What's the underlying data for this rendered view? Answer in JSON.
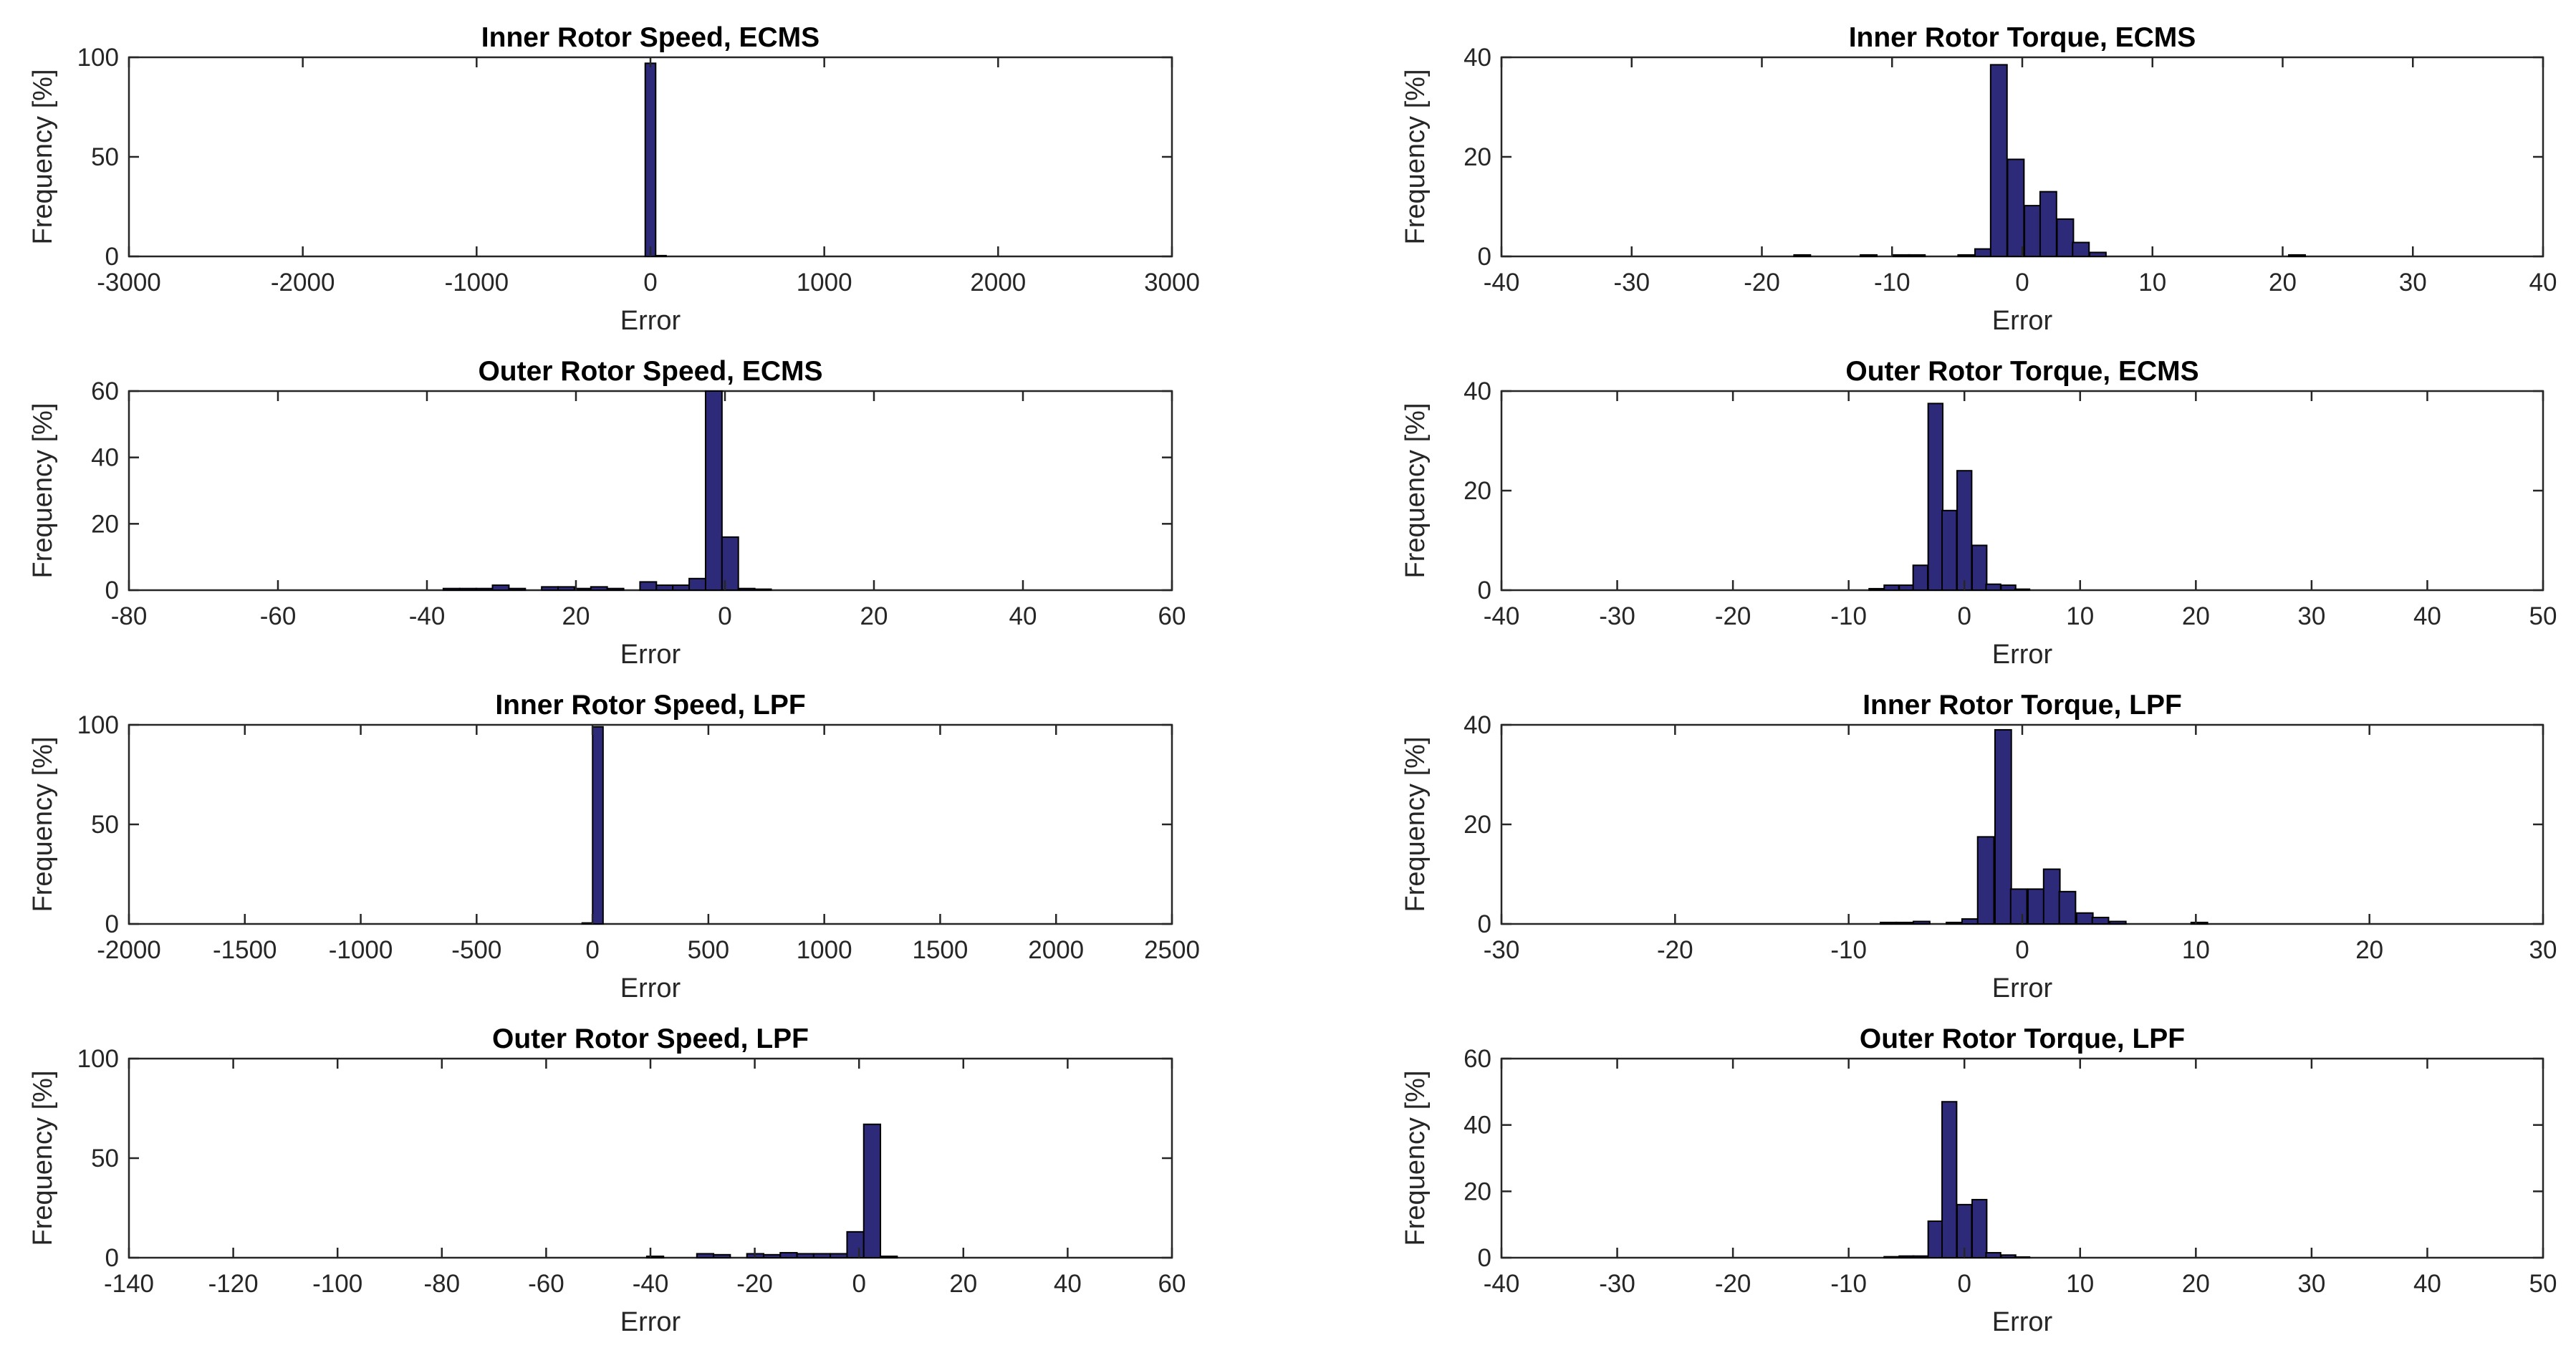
{
  "figure": {
    "background": "#ffffff",
    "bar_color": "#2e2a7a"
  },
  "chart_data": [
    {
      "type": "bar",
      "title": "Inner Rotor Speed, ECMS",
      "xlabel": "Error",
      "ylabel": "Frequency [%]",
      "xlim": [
        -3000,
        3000
      ],
      "ylim": [
        0,
        100
      ],
      "xticks": [
        "-3000",
        "-2000",
        "-1000",
        "0",
        "1000",
        "2000",
        "3000"
      ],
      "yticks": [
        "0",
        "50",
        "100"
      ],
      "bin_width": 60,
      "x": [
        0,
        60
      ],
      "values": [
        97,
        0.4
      ]
    },
    {
      "type": "bar",
      "title": "Inner Rotor Torque, ECMS",
      "xlabel": "Error",
      "ylabel": "Frequency [%]",
      "xlim": [
        -40,
        40
      ],
      "ylim": [
        0,
        40
      ],
      "xticks": [
        "-40",
        "-30",
        "-20",
        "-10",
        "0",
        "10",
        "20",
        "30",
        "40"
      ],
      "yticks": [
        "0",
        "20",
        "40"
      ],
      "bin_width": 1.26,
      "x": [
        -16.9,
        -11.8,
        -9.3,
        -8.1,
        -4.3,
        -3.0,
        -1.8,
        -0.5,
        0.8,
        2.0,
        3.3,
        4.5,
        5.8,
        21.1
      ],
      "values": [
        0.3,
        0.3,
        0.3,
        0.3,
        0.3,
        1.5,
        38.5,
        19.5,
        10.2,
        13,
        7.5,
        2.8,
        0.8,
        0.3
      ]
    },
    {
      "type": "bar",
      "title": "Outer Rotor Speed, ECMS",
      "xlabel": "Error",
      "ylabel": "Frequency [%]",
      "xlim": [
        -80,
        60
      ],
      "ylim": [
        0,
        60
      ],
      "xticks": [
        "-80",
        "-60",
        "-40",
        "20",
        "0",
        "20",
        "40",
        "60"
      ],
      "yticks": [
        "0",
        "20",
        "40",
        "60"
      ],
      "bin_width": 2.2,
      "x": [
        -36.7,
        -34.5,
        -32.3,
        -30.1,
        -27.9,
        -23.5,
        -21.3,
        -19.1,
        -16.9,
        -14.7,
        -10.3,
        -8.1,
        -5.9,
        -3.7,
        -1.5,
        0.7,
        2.9,
        5.1
      ],
      "values": [
        0.5,
        0.5,
        0.5,
        1.5,
        0.5,
        1,
        1,
        0.5,
        1,
        0.5,
        2.5,
        1.5,
        1.5,
        3.5,
        60,
        16,
        0.5,
        0.3
      ]
    },
    {
      "type": "bar",
      "title": "Outer Rotor Torque, ECMS",
      "xlabel": "Error",
      "ylabel": "Frequency [%]",
      "xlim": [
        -40,
        50
      ],
      "ylim": [
        0,
        40
      ],
      "xticks": [
        "-40",
        "-30",
        "-20",
        "-10",
        "0",
        "10",
        "20",
        "30",
        "40",
        "50"
      ],
      "yticks": [
        "0",
        "20",
        "40"
      ],
      "bin_width": 1.26,
      "x": [
        -7.6,
        -6.3,
        -5.0,
        -3.8,
        -2.5,
        -1.3,
        0,
        1.3,
        2.5,
        3.8,
        5.0
      ],
      "values": [
        0.3,
        1,
        1,
        5,
        37.5,
        16,
        24,
        9,
        1.2,
        1,
        0.2
      ]
    },
    {
      "type": "bar",
      "title": "Inner Rotor Speed, LPF",
      "xlabel": "Error",
      "ylabel": "Frequency [%]",
      "xlim": [
        -2000,
        2500
      ],
      "ylim": [
        0,
        100
      ],
      "xticks": [
        "-2000",
        "-1500",
        "-1000",
        "-500",
        "0",
        "500",
        "1000",
        "1500",
        "2000",
        "2500"
      ],
      "yticks": [
        "0",
        "50",
        "100"
      ],
      "bin_width": 45,
      "x": [
        -22,
        23
      ],
      "values": [
        0.5,
        99
      ]
    },
    {
      "type": "bar",
      "title": "Inner Rotor Torque, LPF",
      "xlabel": "Error",
      "ylabel": "Frequency [%]",
      "xlim": [
        -30,
        30
      ],
      "ylim": [
        0,
        40
      ],
      "xticks": [
        "-30",
        "-20",
        "-10",
        "0",
        "10",
        "20",
        "30"
      ],
      "yticks": [
        "0",
        "20",
        "40"
      ],
      "bin_width": 0.94,
      "x": [
        -7.7,
        -6.8,
        -5.8,
        -4.9,
        -3.9,
        -3.0,
        -2.1,
        -1.1,
        -0.2,
        0.8,
        1.7,
        2.6,
        3.6,
        4.5,
        5.5,
        6.4,
        7.4,
        8.3,
        9.3,
        10.2
      ],
      "values": [
        0.3,
        0.3,
        0.5,
        0,
        0.3,
        1,
        17.5,
        39,
        7,
        7,
        11,
        6.5,
        2.2,
        1.3,
        0.5,
        0,
        0,
        0,
        0,
        0.3
      ]
    },
    {
      "type": "bar",
      "title": "Outer Rotor Speed, LPF",
      "xlabel": "Error",
      "ylabel": "Frequency [%]",
      "xlim": [
        -140,
        60
      ],
      "ylim": [
        0,
        100
      ],
      "xticks": [
        "-140",
        "-120",
        "-100",
        "-80",
        "-60",
        "-40",
        "-20",
        "0",
        "20",
        "40",
        "60"
      ],
      "yticks": [
        "0",
        "50",
        "100"
      ],
      "bin_width": 3.2,
      "x": [
        -39.1,
        -29.5,
        -26.3,
        -19.9,
        -16.7,
        -13.5,
        -10.3,
        -7.1,
        -3.9,
        -0.7,
        2.5,
        5.7
      ],
      "values": [
        0.7,
        2,
        1.5,
        2,
        1.5,
        2.5,
        2,
        2,
        2,
        13,
        67,
        0.7
      ]
    },
    {
      "type": "bar",
      "title": "Outer Rotor Torque, LPF",
      "xlabel": "Error",
      "ylabel": "Frequency [%]",
      "xlim": [
        -40,
        50
      ],
      "ylim": [
        0,
        60
      ],
      "xticks": [
        "-40",
        "-30",
        "-20",
        "-10",
        "0",
        "10",
        "20",
        "30",
        "40",
        "50"
      ],
      "yticks": [
        "0",
        "20",
        "40",
        "60"
      ],
      "bin_width": 1.26,
      "x": [
        -6.3,
        -5.0,
        -3.8,
        -2.5,
        -1.3,
        0,
        1.3,
        2.5,
        3.8,
        5.0
      ],
      "values": [
        0.3,
        0.5,
        0.5,
        11,
        47,
        16,
        17.5,
        1.5,
        0.8,
        0.2
      ]
    }
  ]
}
